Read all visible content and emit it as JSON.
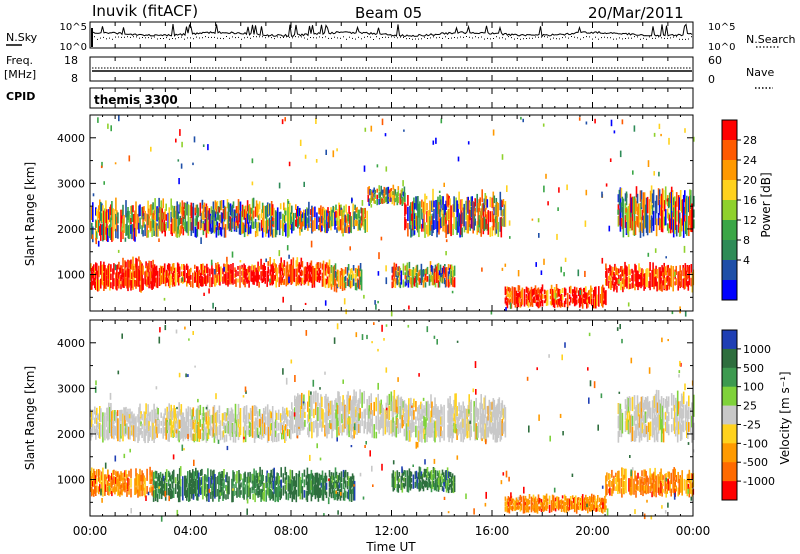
{
  "header": {
    "station": "Inuvik (fitACF)",
    "beam": "Beam 05",
    "date": "20/Mar/2011"
  },
  "top_panels": {
    "nsky_label": "N.Sky",
    "nsky_ticks": [
      "10^5",
      "10^0"
    ],
    "nsearch_label": "N.Search",
    "nsearch_ticks": [
      "10^5",
      "10^0"
    ],
    "freq_label": "Freq.",
    "freq_unit": "[MHz]",
    "freq_ticks": [
      "18",
      "8"
    ],
    "nave_label": "Nave",
    "nave_ticks": [
      "60",
      "0"
    ],
    "cpid_label": "CPID",
    "cpid_value": "themis 3300"
  },
  "chart_data": [
    {
      "type": "heatmap",
      "panel": "power",
      "ylabel": "Slant Range [km]",
      "yticks": [
        1000,
        2000,
        3000,
        4000
      ],
      "ylim": [
        200,
        4500
      ],
      "xlim": [
        0,
        24
      ],
      "colorbar": {
        "label": "Power [dB]",
        "ticks": [
          "28",
          "24",
          "20",
          "16",
          "12",
          "8",
          "4"
        ],
        "colors": [
          "#ff0000",
          "#ff5a00",
          "#ff9900",
          "#ffd21e",
          "#8fd12c",
          "#3aa646",
          "#2e8b57",
          "#1f4fa8",
          "#0000ff"
        ]
      },
      "echo_regions": [
        {
          "t": [
            0.0,
            2.5
          ],
          "r": [
            600,
            1400
          ],
          "level": "high"
        },
        {
          "t": [
            2.5,
            6.5
          ],
          "r": [
            700,
            1300
          ],
          "level": "high"
        },
        {
          "t": [
            6.5,
            9.5
          ],
          "r": [
            700,
            1400
          ],
          "level": "high"
        },
        {
          "t": [
            9.5,
            10.8
          ],
          "r": [
            600,
            1300
          ],
          "level": "mid"
        },
        {
          "t": [
            12.0,
            14.5
          ],
          "r": [
            700,
            1300
          ],
          "level": "mixed"
        },
        {
          "t": [
            16.5,
            20.5
          ],
          "r": [
            250,
            800
          ],
          "level": "high"
        },
        {
          "t": [
            20.5,
            24.0
          ],
          "r": [
            600,
            1300
          ],
          "level": "high"
        },
        {
          "t": [
            0.0,
            1.8
          ],
          "r": [
            1700,
            2700
          ],
          "level": "mixed"
        },
        {
          "t": [
            1.8,
            8.0
          ],
          "r": [
            1800,
            2700
          ],
          "level": "mixed"
        },
        {
          "t": [
            8.0,
            11.0
          ],
          "r": [
            1900,
            2600
          ],
          "level": "mixed"
        },
        {
          "t": [
            11.0,
            12.5
          ],
          "r": [
            2500,
            3000
          ],
          "level": "mixed"
        },
        {
          "t": [
            12.5,
            16.5
          ],
          "r": [
            1800,
            2900
          ],
          "level": "mixed"
        },
        {
          "t": [
            21.0,
            24.0
          ],
          "r": [
            1800,
            3000
          ],
          "level": "mixed"
        }
      ]
    },
    {
      "type": "heatmap",
      "panel": "velocity",
      "ylabel": "Slant Range [km]",
      "yticks": [
        1000,
        2000,
        3000,
        4000
      ],
      "ylim": [
        200,
        4500
      ],
      "xlim": [
        0,
        24
      ],
      "xlabel": "Time UT",
      "xticks": [
        "00:00",
        "04:00",
        "08:00",
        "12:00",
        "16:00",
        "20:00",
        "00:00"
      ],
      "colorbar": {
        "label": "Velocity [m s⁻¹]",
        "ticks": [
          "1000",
          "500",
          "100",
          "25",
          "-25",
          "-100",
          "-500",
          "-1000"
        ],
        "colors": [
          "#1f3fb4",
          "#2e6e3e",
          "#3d9a50",
          "#7fd23a",
          "#c8c8c8",
          "#ffd21e",
          "#ff9a00",
          "#ff6a00",
          "#ff0000"
        ]
      },
      "echo_regions": [
        {
          "t": [
            0.0,
            2.5
          ],
          "r": [
            600,
            1300
          ],
          "level": "negative"
        },
        {
          "t": [
            2.5,
            10.5
          ],
          "r": [
            500,
            1300
          ],
          "level": "positive"
        },
        {
          "t": [
            12.0,
            14.5
          ],
          "r": [
            700,
            1300
          ],
          "level": "positive"
        },
        {
          "t": [
            16.5,
            20.5
          ],
          "r": [
            250,
            700
          ],
          "level": "negative"
        },
        {
          "t": [
            20.5,
            24.0
          ],
          "r": [
            600,
            1300
          ],
          "level": "negative"
        },
        {
          "t": [
            0.0,
            8.0
          ],
          "r": [
            1800,
            2700
          ],
          "level": "near-zero"
        },
        {
          "t": [
            8.0,
            12.5
          ],
          "r": [
            1900,
            3000
          ],
          "level": "near-zero"
        },
        {
          "t": [
            12.5,
            16.5
          ],
          "r": [
            1800,
            2900
          ],
          "level": "near-zero"
        },
        {
          "t": [
            21.0,
            24.0
          ],
          "r": [
            1800,
            3000
          ],
          "level": "near-zero"
        }
      ]
    }
  ]
}
